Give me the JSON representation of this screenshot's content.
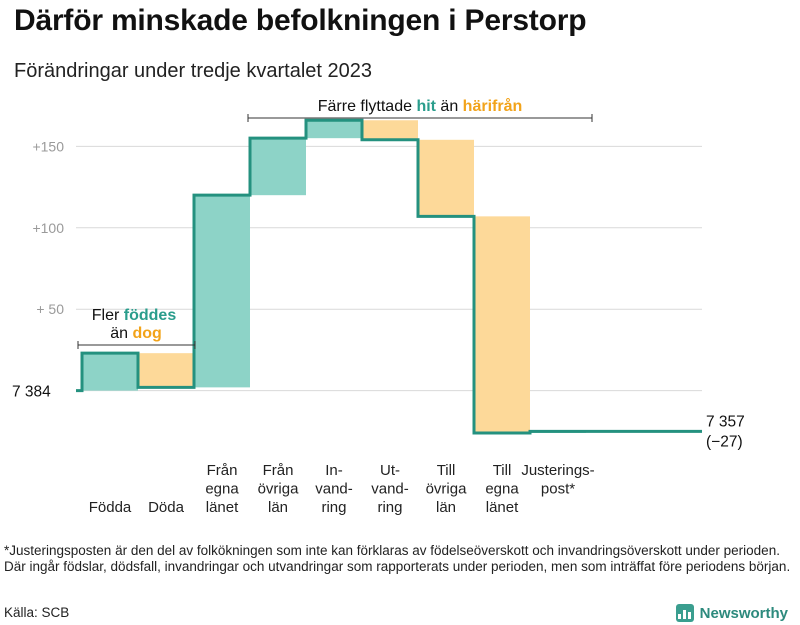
{
  "title": "Därför minskade befolkningen i Perstorp",
  "subtitle": "Förändringar under tredje kvartalet 2023",
  "colors": {
    "increase_fill": "#8dd3c7",
    "decrease_fill": "#fdd999",
    "step_line": "#24917f",
    "hit": "#2a9d8c",
    "harifran": "#f2a31a",
    "grid": "#d9d9d9"
  },
  "chart_data": {
    "type": "waterfall",
    "baseline": 7384,
    "baseline_label": "7  384",
    "end_value": 7357,
    "end_label": "7 357",
    "change_label": "(−27)",
    "y_ticks": [
      {
        "value": 150,
        "label": "+150"
      },
      {
        "value": 100,
        "label": "+100"
      },
      {
        "value": 50,
        "label": "+  50"
      }
    ],
    "ylim": [
      -34,
      168
    ],
    "steps": [
      {
        "name": "Födda",
        "label_lines": [
          "Födda"
        ],
        "change": 23
      },
      {
        "name": "Döda",
        "label_lines": [
          "Döda"
        ],
        "change": -21
      },
      {
        "name": "Från egna länet",
        "label_lines": [
          "Från",
          "egna",
          "länet"
        ],
        "change": 118
      },
      {
        "name": "Från övriga län",
        "label_lines": [
          "Från",
          "övriga",
          "län"
        ],
        "change": 35
      },
      {
        "name": "Invandring",
        "label_lines": [
          "In-",
          "vand-",
          "ring"
        ],
        "change": 11
      },
      {
        "name": "Utvandring",
        "label_lines": [
          "Ut-",
          "vand-",
          "ring"
        ],
        "change": -12
      },
      {
        "name": "Till övriga län",
        "label_lines": [
          "Till",
          "övriga",
          "län"
        ],
        "change": -47
      },
      {
        "name": "Till egna länet",
        "label_lines": [
          "Till",
          "egna",
          "länet"
        ],
        "change": -133
      },
      {
        "name": "Justeringspost*",
        "label_lines": [
          "Justerings-",
          "post*"
        ],
        "change": 1
      }
    ]
  },
  "annotations": {
    "births": {
      "line1": "Fler ",
      "births_word": "föddes",
      "line2": "än ",
      "deaths_word": "dog"
    },
    "migration": {
      "prefix": "Färre flyttade ",
      "hit": "hit",
      "middle": " än ",
      "harifran": "härifrån"
    }
  },
  "footnote": "*Justeringsposten är den del av folkökningen som inte kan förklaras av födelseöverskott och invandringsöverskott under perioden. Där ingår födslar, dödsfall, invandringar och utvandringar som rapporterats under perioden, men som inträffat före periodens början.",
  "source": "Källa: SCB",
  "brand": "Newsworthy"
}
